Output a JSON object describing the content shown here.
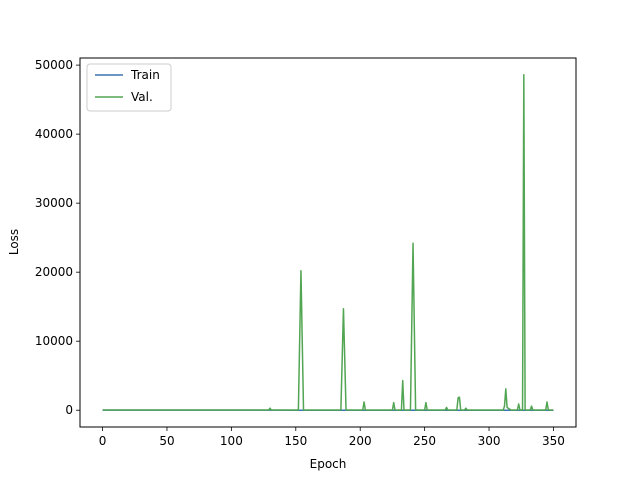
{
  "chart_data": {
    "type": "line",
    "title": "",
    "xlabel": "Epoch",
    "ylabel": "Loss",
    "xlim": [
      -17.5,
      367.5
    ],
    "ylim": [
      -2430,
      51030
    ],
    "xticks": [
      0,
      50,
      100,
      150,
      200,
      250,
      300,
      350
    ],
    "yticks": [
      0,
      10000,
      20000,
      30000,
      40000,
      50000
    ],
    "grid": false,
    "legend_position": "top-left",
    "series": [
      {
        "name": "Train",
        "color": "#3b75af",
        "points": [
          [
            0,
            20
          ],
          [
            50,
            12
          ],
          [
            100,
            8
          ],
          [
            150,
            6
          ],
          [
            200,
            5
          ],
          [
            250,
            5
          ],
          [
            300,
            4
          ],
          [
            350,
            4
          ]
        ]
      },
      {
        "name": "Val.",
        "color": "#52a552",
        "points": [
          [
            0,
            30
          ],
          [
            129,
            30
          ],
          [
            130,
            300
          ],
          [
            131,
            30
          ],
          [
            152,
            30
          ],
          [
            154,
            20200
          ],
          [
            156,
            30
          ],
          [
            185,
            30
          ],
          [
            187,
            14700
          ],
          [
            189,
            30
          ],
          [
            202,
            30
          ],
          [
            203,
            1200
          ],
          [
            204,
            30
          ],
          [
            225,
            30
          ],
          [
            226,
            1100
          ],
          [
            227,
            30
          ],
          [
            232,
            30
          ],
          [
            233,
            4300
          ],
          [
            234,
            30
          ],
          [
            239,
            30
          ],
          [
            241,
            24200
          ],
          [
            243,
            30
          ],
          [
            250,
            30
          ],
          [
            251,
            1100
          ],
          [
            252,
            30
          ],
          [
            266,
            30
          ],
          [
            267,
            400
          ],
          [
            268,
            30
          ],
          [
            275,
            30
          ],
          [
            276,
            1800
          ],
          [
            277,
            1900
          ],
          [
            278,
            30
          ],
          [
            281,
            30
          ],
          [
            282,
            300
          ],
          [
            283,
            30
          ],
          [
            311,
            30
          ],
          [
            312,
            600
          ],
          [
            313,
            3100
          ],
          [
            314,
            400
          ],
          [
            317,
            30
          ],
          [
            322,
            30
          ],
          [
            323,
            900
          ],
          [
            324,
            30
          ],
          [
            326,
            30
          ],
          [
            327,
            48600
          ],
          [
            328,
            30
          ],
          [
            332,
            30
          ],
          [
            333,
            600
          ],
          [
            334,
            30
          ],
          [
            344,
            30
          ],
          [
            345,
            1200
          ],
          [
            346,
            30
          ],
          [
            350,
            30
          ]
        ]
      }
    ]
  }
}
